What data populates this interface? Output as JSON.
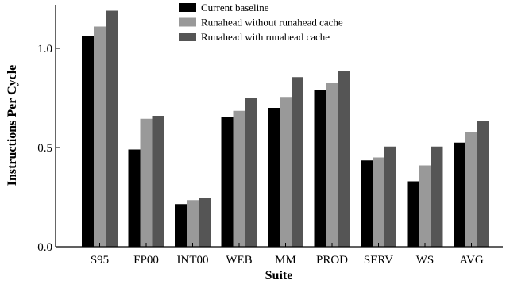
{
  "chart_data": {
    "type": "bar",
    "xlabel": "Suite",
    "ylabel": "Instructions Per Cycle",
    "ylim": [
      0,
      1.22
    ],
    "yticks": [
      0.0,
      0.5,
      1.0
    ],
    "ytick_labels": [
      "0.0",
      "0.5",
      "1.0"
    ],
    "categories": [
      "S95",
      "FP00",
      "INT00",
      "WEB",
      "MM",
      "PROD",
      "SERV",
      "WS",
      "AVG"
    ],
    "legend_position": "top-center",
    "grid": false,
    "series": [
      {
        "name": "Current baseline",
        "color": "#000000",
        "values": [
          1.06,
          0.49,
          0.215,
          0.655,
          0.7,
          0.79,
          0.435,
          0.33,
          0.525
        ]
      },
      {
        "name": "Runahead without runahead cache",
        "color": "#999999",
        "values": [
          1.11,
          0.645,
          0.235,
          0.685,
          0.755,
          0.825,
          0.45,
          0.41,
          0.58
        ]
      },
      {
        "name": "Runahead with runahead cache",
        "color": "#555555",
        "values": [
          1.19,
          0.66,
          0.245,
          0.75,
          0.855,
          0.885,
          0.505,
          0.505,
          0.635
        ]
      }
    ]
  }
}
